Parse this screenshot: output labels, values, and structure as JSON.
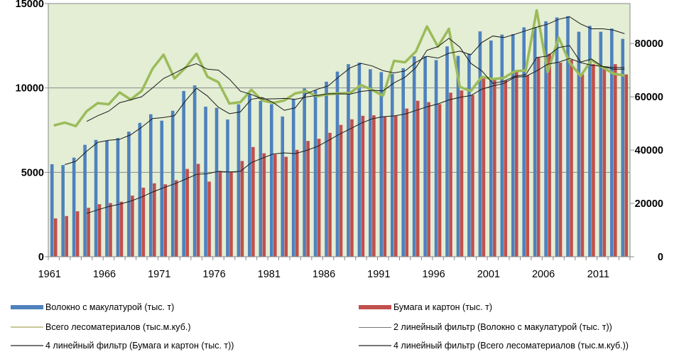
{
  "chart_data": {
    "type": "bar",
    "title": "",
    "categories": [
      1961,
      1962,
      1963,
      1964,
      1965,
      1966,
      1967,
      1968,
      1969,
      1970,
      1971,
      1972,
      1973,
      1974,
      1975,
      1976,
      1977,
      1978,
      1979,
      1980,
      1981,
      1982,
      1983,
      1984,
      1985,
      1986,
      1987,
      1988,
      1989,
      1990,
      1991,
      1992,
      1993,
      1994,
      1995,
      1996,
      1997,
      1998,
      1999,
      2000,
      2001,
      2002,
      2003,
      2004,
      2005,
      2006,
      2007,
      2008,
      2009,
      2010,
      2011,
      2012,
      2013
    ],
    "x_tick_labels": [
      "1961",
      "1966",
      "1971",
      "1976",
      "1981",
      "1986",
      "1991",
      "1996",
      "2001",
      "2006",
      "2011"
    ],
    "y_left": {
      "lim": [
        0,
        15000
      ],
      "ticks": [
        "0",
        "5000",
        "10000",
        "15000"
      ],
      "tick_values": [
        0,
        5000,
        10000,
        15000
      ],
      "grid": true
    },
    "y_right": {
      "lim": [
        0,
        95000
      ],
      "ticks": [
        "0",
        "20000",
        "40000",
        "60000",
        "80000"
      ],
      "tick_values": [
        0,
        20000,
        40000,
        60000,
        80000
      ]
    },
    "series": [
      {
        "name": "Волокно с макулатурой (тыс. т)",
        "type": "bar",
        "axis": "left",
        "color": "#4f81bd",
        "values": [
          5480,
          5430,
          5870,
          6630,
          6920,
          6880,
          7030,
          7410,
          7930,
          8440,
          8060,
          8650,
          9820,
          10150,
          8890,
          8820,
          8130,
          9030,
          9630,
          9230,
          9040,
          8310,
          9330,
          9970,
          9870,
          10370,
          10970,
          11410,
          11500,
          11110,
          10940,
          10840,
          11170,
          11870,
          11880,
          11650,
          12460,
          11900,
          12030,
          13350,
          12810,
          13160,
          13190,
          13590,
          13610,
          13950,
          14180,
          14250,
          13330,
          13680,
          13330,
          13520,
          12910
        ]
      },
      {
        "name": "Бумага и картон (тыс. т)",
        "type": "bar",
        "axis": "left",
        "color": "#c0504d",
        "values": [
          2270,
          2410,
          2690,
          2900,
          3110,
          3180,
          3260,
          3620,
          4090,
          4350,
          4290,
          4530,
          5200,
          5500,
          4450,
          5080,
          5050,
          5670,
          6500,
          6130,
          6060,
          5920,
          6330,
          6860,
          6990,
          7340,
          7810,
          8140,
          8350,
          8380,
          8310,
          8340,
          8780,
          9240,
          9160,
          9040,
          9720,
          9850,
          9580,
          10560,
          10480,
          10450,
          11040,
          10760,
          11800,
          12030,
          11500,
          11670,
          10800,
          11410,
          11220,
          11410,
          10800
        ]
      },
      {
        "name": "Всего лесоматериалов (тыс.м.куб.)",
        "type": "line",
        "axis": "right",
        "color": "#9bbb59",
        "values": [
          49260,
          50330,
          49000,
          54610,
          57640,
          57190,
          61650,
          58980,
          62180,
          70560,
          75810,
          66900,
          70910,
          76170,
          67530,
          65480,
          57460,
          58000,
          62630,
          58620,
          57730,
          58620,
          61290,
          62090,
          60220,
          61020,
          61290,
          61470,
          64410,
          62630,
          60400,
          73500,
          72960,
          77060,
          86410,
          78840,
          85520,
          63700,
          62180,
          67530,
          66640,
          67080,
          69580,
          69930,
          92470,
          69310,
          82230,
          72870,
          67800,
          73770,
          71100,
          68690,
          67980
        ]
      }
    ],
    "trendlines": [
      {
        "name": "2 линейный фильтр (Волокно с макулатурой (тыс. т))",
        "source": 0,
        "period": 2,
        "axis": "left"
      },
      {
        "name": "4 линейный фильтр (Бумага и картон (тыс. т))",
        "source": 1,
        "period": 4,
        "axis": "left"
      },
      {
        "name": "4 линейный фильтр (Всего лесоматериалов (тыс.м.куб.))",
        "source": 2,
        "period": 4,
        "axis": "right"
      }
    ],
    "legend_position": "bottom"
  }
}
